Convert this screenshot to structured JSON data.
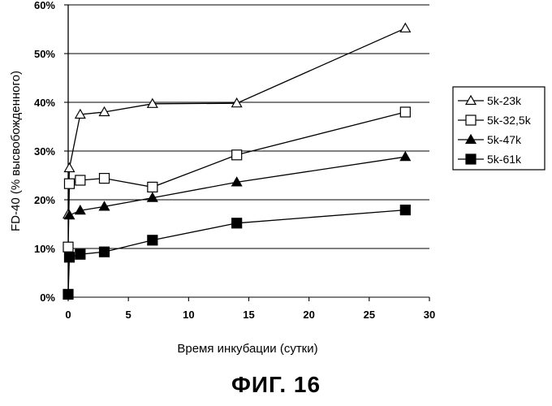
{
  "figure_caption": "ФИГ. 16",
  "chart_data": {
    "type": "line",
    "title": "",
    "xlabel": "Время инкубации (сутки)",
    "ylabel": "FD-40 (% высвобожденного)",
    "xlim": [
      0,
      30
    ],
    "ylim": [
      0,
      60
    ],
    "x_ticks": [
      0,
      5,
      10,
      15,
      20,
      25,
      30
    ],
    "y_ticks": [
      0,
      10,
      20,
      30,
      40,
      50,
      60
    ],
    "y_tick_suffix": "%",
    "legend_position": "right",
    "series": [
      {
        "name": "5k-23k",
        "marker": "triangle-open",
        "x": [
          0,
          0.1,
          1,
          3,
          7,
          14,
          28
        ],
        "y": [
          17,
          26.5,
          37.5,
          38,
          39.7,
          39.8,
          55.2
        ]
      },
      {
        "name": "5k-32,5k",
        "marker": "square-open",
        "x": [
          0,
          0.1,
          1,
          3,
          7,
          14,
          28
        ],
        "y": [
          10.3,
          23.3,
          24,
          24.4,
          22.6,
          29.2,
          38
        ]
      },
      {
        "name": "5k-47k",
        "marker": "triangle-filled",
        "x": [
          0.1,
          1,
          3,
          7,
          14,
          28
        ],
        "y": [
          16.8,
          17.8,
          18.6,
          20.4,
          23.6,
          28.8
        ]
      },
      {
        "name": "5k-61k",
        "marker": "square-filled",
        "x": [
          0,
          0.1,
          1,
          3,
          7,
          14,
          28
        ],
        "y": [
          0.6,
          8.2,
          8.8,
          9.3,
          11.7,
          15.2,
          17.9
        ]
      }
    ]
  }
}
